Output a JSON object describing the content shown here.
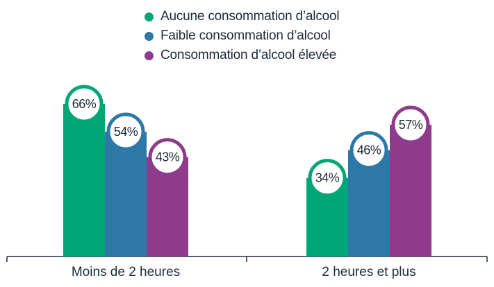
{
  "chart_data": {
    "type": "bar",
    "categories": [
      "Moins de 2 heures",
      "2 heures et plus"
    ],
    "series": [
      {
        "name": "Aucune consommation d’alcool",
        "values": [
          66,
          34
        ],
        "labels": [
          "66%",
          "34%"
        ],
        "color": "#00a676"
      },
      {
        "name": "Faible consommation d’alcool",
        "values": [
          54,
          46
        ],
        "labels": [
          "54%",
          "46%"
        ],
        "color": "#2e78a8"
      },
      {
        "name": "Consommation d’alcool élevée",
        "values": [
          43,
          57
        ],
        "labels": [
          "43%",
          "57%"
        ],
        "color": "#8e3b8c"
      }
    ],
    "ylim": [
      0,
      90
    ],
    "grid": false,
    "legend_position": "top-center",
    "title": "",
    "xlabel": "",
    "ylabel": ""
  },
  "colors": {
    "axis": "#1e2a3a",
    "text": "#1e2a3a"
  }
}
